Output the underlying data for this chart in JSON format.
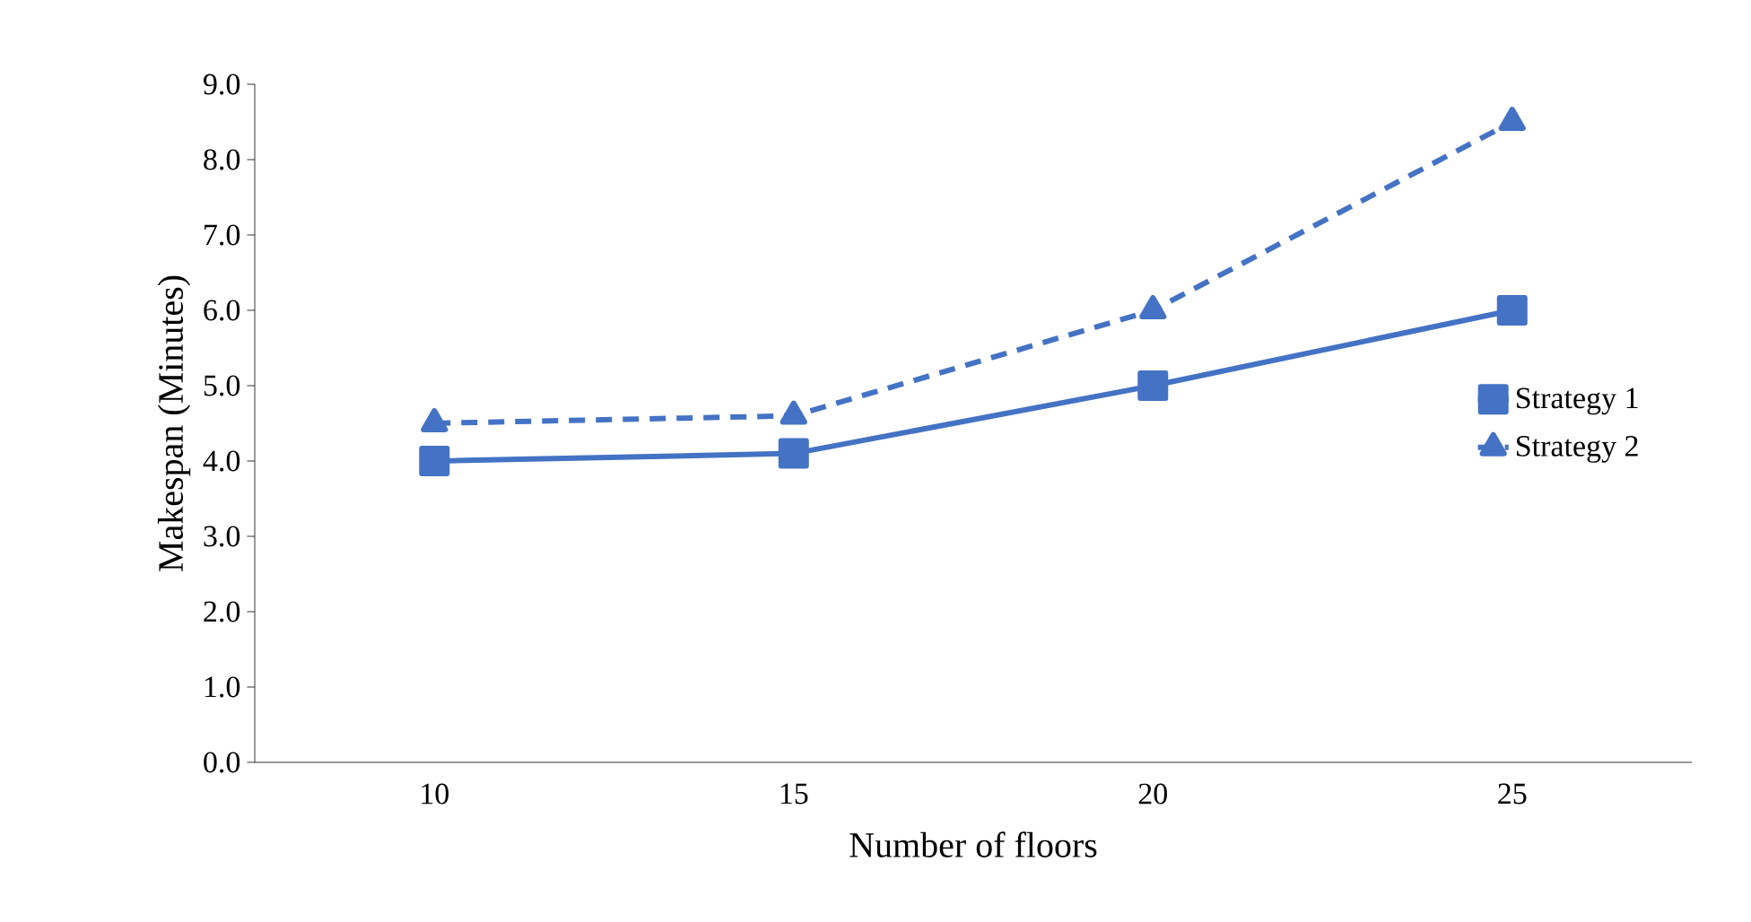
{
  "chart_data": {
    "type": "line",
    "xlabel": "Number of floors",
    "ylabel": "Makespan (Minutes)",
    "categories": [
      "10",
      "15",
      "20",
      "25"
    ],
    "series": [
      {
        "name": "Strategy 1",
        "color": "#4472c4",
        "marker": "square",
        "line_style": "solid",
        "values": [
          4.0,
          4.1,
          5.0,
          6.0
        ]
      },
      {
        "name": "Strategy 2",
        "color": "#4472c4",
        "marker": "triangle",
        "line_style": "dashed",
        "values": [
          4.5,
          4.6,
          6.0,
          8.5
        ]
      }
    ],
    "ylim": [
      0,
      9
    ],
    "yticks": [
      {
        "value": 0,
        "label": "0.0"
      },
      {
        "value": 1,
        "label": "1.0"
      },
      {
        "value": 2,
        "label": "2.0"
      },
      {
        "value": 3,
        "label": "3.0"
      },
      {
        "value": 4,
        "label": "4.0"
      },
      {
        "value": 5,
        "label": "5.0"
      },
      {
        "value": 6,
        "label": "6.0"
      },
      {
        "value": 7,
        "label": "7.0"
      },
      {
        "value": 8,
        "label": "8.0"
      },
      {
        "value": 9,
        "label": "9.0"
      }
    ],
    "grid": false,
    "legend": "right"
  }
}
